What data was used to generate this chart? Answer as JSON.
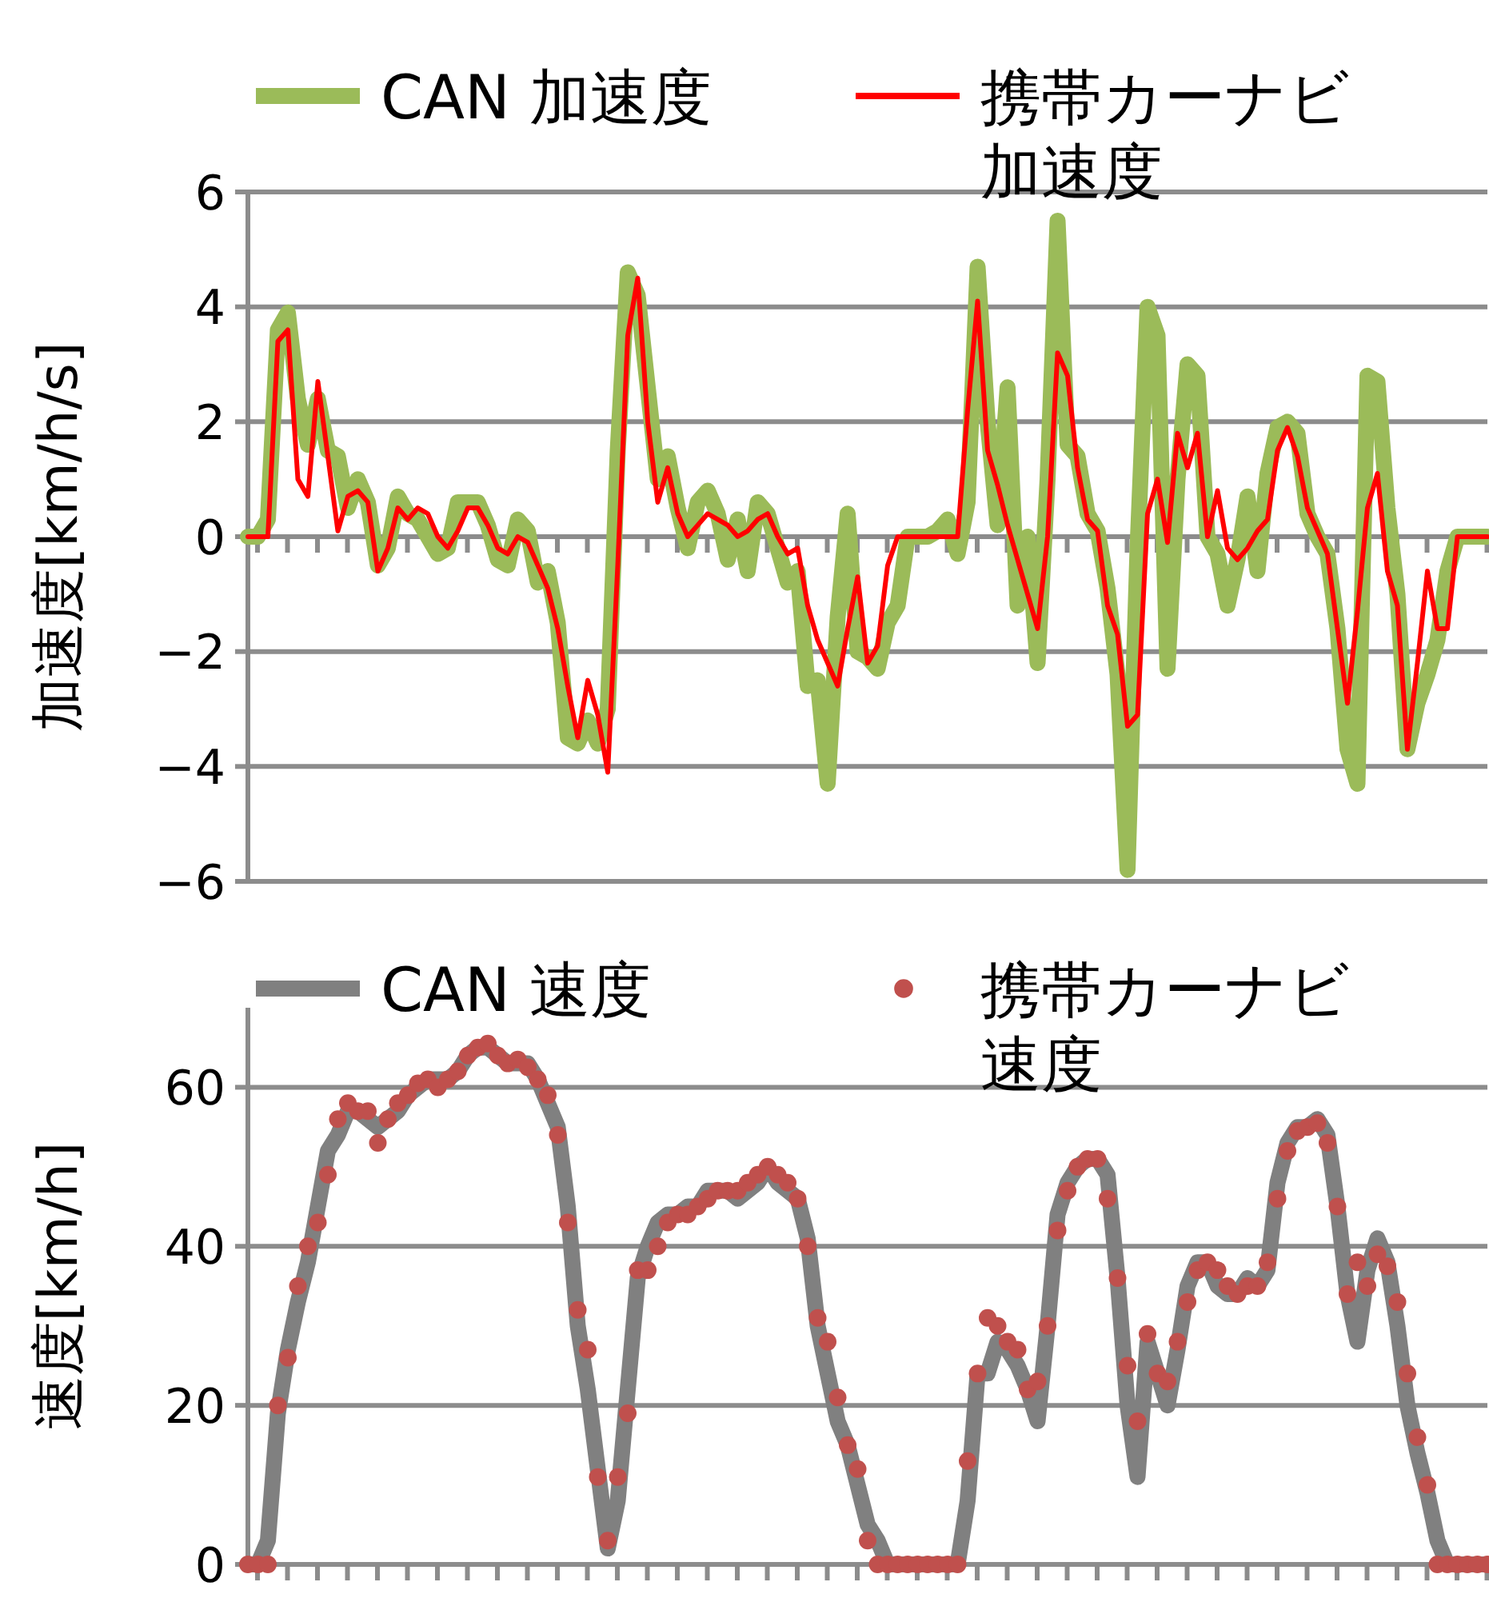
{
  "chart_data": [
    {
      "type": "line",
      "ylabel": "加速度[km/h/s]",
      "ylim": [
        -6,
        6
      ],
      "yticks": [
        6,
        4,
        2,
        0,
        {
          "value": -2,
          "label": "−2"
        },
        {
          "value": -4,
          "label": "−4"
        },
        {
          "value": -6,
          "label": "−6"
        }
      ],
      "grid": "y",
      "legend": "top",
      "tick_labels": "y",
      "categories": [
        null,
        null,
        null,
        null,
        null,
        null,
        null,
        null,
        null,
        null,
        null,
        null,
        null,
        null,
        null,
        null,
        null,
        null,
        null,
        null,
        null,
        null,
        null,
        null,
        null,
        null,
        null,
        null,
        null,
        null,
        null,
        null,
        null,
        null,
        null,
        null,
        null,
        null,
        null,
        null,
        null,
        null,
        null,
        null,
        null,
        null,
        null,
        null,
        null,
        null,
        null,
        null,
        null,
        null,
        null,
        null,
        null,
        null,
        null,
        null,
        null,
        null,
        null,
        null,
        null,
        null,
        null,
        null,
        null,
        null,
        null,
        null,
        null,
        null,
        null,
        null,
        null,
        null,
        null,
        null,
        null,
        null,
        null,
        null,
        null,
        null,
        null,
        null,
        null,
        null,
        null,
        null,
        null,
        null,
        null,
        null,
        null,
        null,
        null,
        null,
        null,
        null,
        null,
        null,
        null,
        null,
        null,
        null,
        null,
        null,
        null,
        null,
        null,
        null,
        null,
        null,
        null,
        null,
        null,
        null,
        null,
        null,
        null,
        null,
        null
      ],
      "series": [
        {
          "name": "CAN 加速度",
          "type": "line",
          "color": "#9bbb59",
          "values": [
            0,
            0,
            0.3,
            3.6,
            3.9,
            2.4,
            1.6,
            2.4,
            1.5,
            1.4,
            0.5,
            1.0,
            0.6,
            -0.5,
            -0.2,
            0.7,
            0.4,
            0.3,
            0,
            -0.3,
            -0.2,
            0.6,
            0.6,
            0.6,
            0.2,
            -0.4,
            -0.5,
            0.3,
            0.1,
            -0.8,
            -0.6,
            -1.5,
            -3.5,
            -3.6,
            -3.2,
            -3.6,
            -3.0,
            1.5,
            4.6,
            4.2,
            2.6,
            1.0,
            1.4,
            0.5,
            -0.2,
            0.6,
            0.8,
            0.4,
            -0.4,
            0.3,
            -0.6,
            0.6,
            0.4,
            -0.2,
            -0.8,
            -0.6,
            -2.6,
            -2.5,
            -4.3,
            -1.4,
            0.4,
            -2.0,
            -2.1,
            -2.3,
            -1.5,
            -1.2,
            0,
            0,
            0,
            0.1,
            0.3,
            -0.3,
            0.6,
            4.7,
            2.0,
            0.2,
            2.6,
            -1.2,
            0,
            -2.2,
            1.0,
            5.5,
            1.6,
            1.4,
            0.4,
            0.1,
            -0.9,
            -2.4,
            -5.8,
            -0.2,
            4.0,
            3.5,
            -2.3,
            1.0,
            3.0,
            2.8,
            0,
            -0.3,
            -1.2,
            -0.4,
            0.7,
            -0.6,
            1.1,
            1.9,
            2.0,
            1.8,
            0.4,
            0,
            -0.3,
            -1.6,
            -3.7,
            -4.3,
            2.8,
            2.7,
            0.5,
            -1.0,
            -3.7,
            -2.9,
            -2.4,
            -1.8,
            -0.6,
            0,
            0,
            0,
            0
          ]
        },
        {
          "name": "携帯カーナビ加速度",
          "type": "line",
          "color": "#ff0000",
          "values": [
            0,
            0,
            0,
            3.4,
            3.6,
            1.0,
            0.7,
            2.7,
            1.4,
            0.1,
            0.7,
            0.8,
            0.6,
            -0.6,
            -0.2,
            0.5,
            0.3,
            0.5,
            0.4,
            0,
            -0.2,
            0.1,
            0.5,
            0.5,
            0.2,
            -0.2,
            -0.3,
            0,
            -0.1,
            -0.5,
            -0.9,
            -1.6,
            -2.6,
            -3.5,
            -2.5,
            -3.1,
            -4.1,
            -0.5,
            3.5,
            4.5,
            2.0,
            0.6,
            1.2,
            0.4,
            0,
            0.2,
            0.4,
            0.3,
            0.2,
            0,
            0.1,
            0.3,
            0.4,
            0,
            -0.3,
            -0.2,
            -1.2,
            -1.8,
            -2.2,
            -2.6,
            -1.6,
            -0.7,
            -2.2,
            -1.9,
            -0.5,
            0,
            0,
            0,
            0,
            0,
            0,
            0,
            2.2,
            4.1,
            1.5,
            0.9,
            0.2,
            -0.4,
            -1.0,
            -1.6,
            0,
            3.2,
            2.8,
            1.2,
            0.3,
            0.1,
            -1.2,
            -1.7,
            -3.3,
            -3.1,
            0.4,
            1.0,
            -0.1,
            1.8,
            1.2,
            1.8,
            0,
            0.8,
            -0.2,
            -0.4,
            -0.2,
            0.1,
            0.3,
            1.5,
            1.9,
            1.4,
            0.5,
            0.1,
            -0.3,
            -1.6,
            -2.9,
            -1.3,
            0.5,
            1.1,
            -0.6,
            -1.2,
            -3.7,
            -2.2,
            -0.6,
            -1.6,
            -1.6,
            0,
            0,
            0,
            0
          ]
        }
      ]
    },
    {
      "type": "line",
      "ylabel": "速度[km/h]",
      "ylim": [
        0,
        70
      ],
      "yticks": [
        0,
        20,
        40,
        60
      ],
      "grid": "y",
      "legend": "top",
      "tick_labels": "y",
      "categories": [
        null,
        null,
        null,
        null,
        null,
        null,
        null,
        null,
        null,
        null,
        null,
        null,
        null,
        null,
        null,
        null,
        null,
        null,
        null,
        null,
        null,
        null,
        null,
        null,
        null,
        null,
        null,
        null,
        null,
        null,
        null,
        null,
        null,
        null,
        null,
        null,
        null,
        null,
        null,
        null,
        null,
        null,
        null,
        null,
        null,
        null,
        null,
        null,
        null,
        null,
        null,
        null,
        null,
        null,
        null,
        null,
        null,
        null,
        null,
        null,
        null,
        null,
        null,
        null,
        null,
        null,
        null,
        null,
        null,
        null,
        null,
        null,
        null,
        null,
        null,
        null,
        null,
        null,
        null,
        null,
        null,
        null,
        null,
        null,
        null,
        null,
        null,
        null,
        null,
        null,
        null,
        null,
        null,
        null,
        null,
        null,
        null,
        null,
        null,
        null,
        null,
        null,
        null,
        null,
        null,
        null,
        null,
        null,
        null,
        null,
        null,
        null,
        null,
        null,
        null,
        null,
        null,
        null,
        null,
        null,
        null,
        null,
        null,
        null,
        null
      ],
      "series": [
        {
          "name": "CAN 速度",
          "type": "line",
          "color": "#808080",
          "values": [
            0,
            0,
            3,
            19,
            27,
            33,
            38,
            45,
            52,
            54,
            57,
            57,
            56,
            55,
            56,
            57,
            59,
            60,
            61,
            61,
            61,
            62,
            64,
            65,
            65,
            64,
            63,
            63,
            63,
            61,
            58,
            55,
            45,
            30,
            22,
            12,
            2,
            8,
            22,
            36,
            40,
            43,
            44,
            44,
            45,
            45,
            47,
            47,
            47,
            46,
            47,
            48,
            50,
            48,
            47,
            46,
            41,
            30,
            24,
            18,
            15,
            10,
            5,
            3,
            0,
            0,
            0,
            0,
            0,
            0,
            0,
            0,
            8,
            24,
            24,
            28,
            27,
            25,
            22,
            18,
            30,
            44,
            48,
            50,
            51,
            51,
            49,
            36,
            20,
            11,
            28,
            24,
            20,
            27,
            35,
            38,
            38,
            35,
            34,
            34,
            36,
            35,
            37,
            48,
            53,
            55,
            55,
            56,
            54,
            45,
            34,
            28,
            37,
            41,
            38,
            30,
            20,
            14,
            9,
            3,
            0,
            0,
            0,
            0,
            0
          ]
        },
        {
          "name": "携帯カーナビ速度",
          "type": "scatter",
          "marker": "circle",
          "color": "#c0504d",
          "values": [
            0,
            0,
            0,
            20,
            26,
            35,
            40,
            43,
            49,
            56,
            58,
            57,
            57,
            53,
            56,
            58,
            59,
            60.5,
            61,
            60,
            61,
            62,
            64,
            65,
            65.5,
            64,
            63,
            63.5,
            62.5,
            61,
            59,
            54,
            43,
            32,
            27,
            11,
            3,
            11,
            19,
            37,
            37,
            40,
            43,
            44,
            44,
            45,
            46,
            47,
            47,
            47,
            48,
            49,
            50,
            49,
            48,
            46,
            40,
            31,
            28,
            21,
            15,
            12,
            3,
            0,
            0,
            0,
            0,
            0,
            0,
            0,
            0,
            0,
            13,
            24,
            31,
            30,
            28,
            27,
            22,
            23,
            30,
            42,
            47,
            50,
            51,
            51,
            46,
            36,
            25,
            18,
            29,
            24,
            23,
            28,
            33,
            37,
            38,
            37,
            35,
            34,
            35,
            35,
            38,
            46,
            52,
            54.5,
            55,
            55.5,
            53,
            45,
            34,
            38,
            35,
            39,
            37.5,
            33,
            24,
            16,
            10,
            0,
            0,
            0,
            0,
            0,
            0
          ]
        }
      ]
    }
  ]
}
